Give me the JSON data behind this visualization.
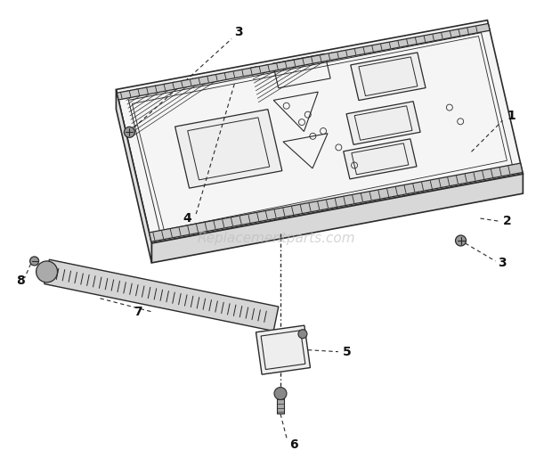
{
  "background_color": "#ffffff",
  "line_color": "#2a2a2a",
  "watermark_text": "Replacementparts.com",
  "watermark_color": "#bbbbbb",
  "label_fontsize": 9,
  "fig_width": 6.2,
  "fig_height": 5.33,
  "dpi": 100
}
